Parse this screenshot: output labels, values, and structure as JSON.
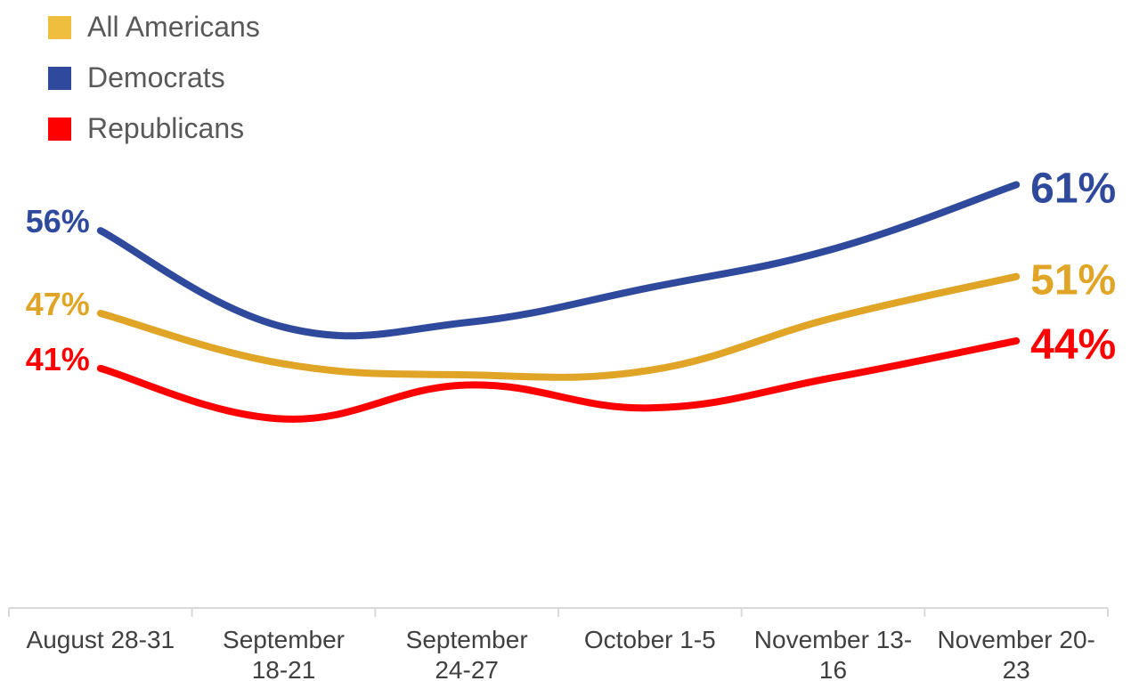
{
  "chart_data": {
    "type": "line",
    "categories": [
      [
        "August 28-31"
      ],
      [
        "September",
        "18-21"
      ],
      [
        "September",
        "24-27"
      ],
      [
        "October 1-5"
      ],
      [
        "November 13-",
        "16"
      ],
      [
        "November 20-",
        "23"
      ]
    ],
    "series": [
      {
        "name": "All Americans",
        "color": "#E0A526",
        "values": [
          47,
          41.5,
          40.3,
          40.8,
          46.5,
          51
        ],
        "label_first": "47%",
        "label_last": "51%"
      },
      {
        "name": "Democrats",
        "color": "#2F4A9C",
        "values": [
          56,
          45.5,
          46,
          49.8,
          54,
          61
        ],
        "label_first": "56%",
        "label_last": "61%"
      },
      {
        "name": "Republicans",
        "color": "#FF0000",
        "values": [
          41,
          35.5,
          39.2,
          36.7,
          40,
          44
        ],
        "label_first": "41%",
        "label_last": "44%"
      }
    ],
    "legend_position": "top-left",
    "grid": false
  }
}
